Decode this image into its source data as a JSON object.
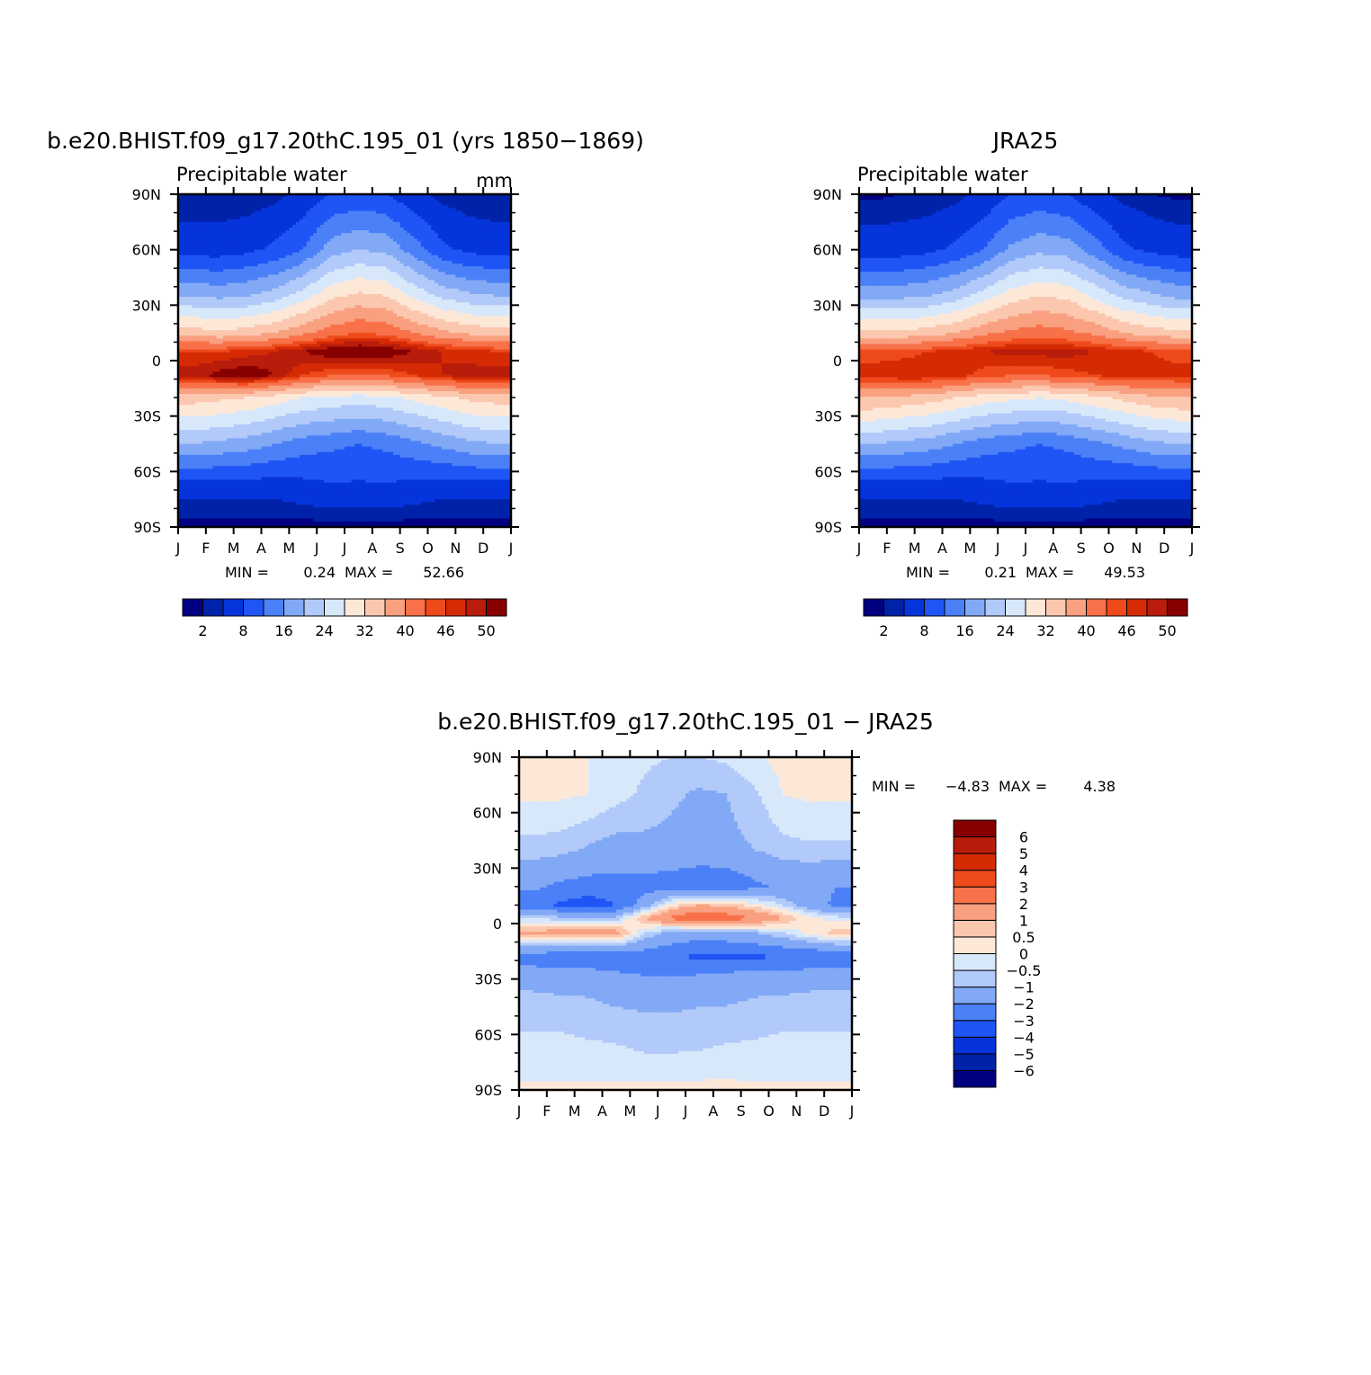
{
  "chart_data": [
    {
      "type": "heatmap",
      "title": "b.e20.BHIST.f09_g17.20thC.195_01 (yrs 1850-1869)",
      "subtitle_left": "Precipitable water",
      "subtitle_right": "mm",
      "x_ticks": [
        "J",
        "F",
        "M",
        "A",
        "M",
        "J",
        "J",
        "A",
        "S",
        "O",
        "N",
        "D",
        "J"
      ],
      "y_ticks": [
        "90N",
        "60N",
        "30N",
        "0",
        "30S",
        "60S",
        "90S"
      ],
      "ylim": [
        -90,
        90
      ],
      "min_label": "MIN =",
      "min": "0.24",
      "max_label": "MAX =",
      "max": "52.66",
      "field": {
        "lat_nodes": [
          -90,
          -70,
          -45,
          -20,
          -8,
          5,
          15,
          35,
          60,
          90
        ],
        "month_centers": [
          0.5,
          1.5,
          2.5,
          3.5,
          4.5,
          5.5,
          6.5,
          7.5,
          8.5,
          9.5,
          10.5,
          11.5
        ],
        "values": [
          [
            1,
            1,
            1,
            1,
            1,
            1,
            1,
            1,
            1,
            1,
            1,
            1
          ],
          [
            5,
            5,
            5,
            5,
            6,
            7,
            7,
            7,
            6,
            5,
            5,
            5
          ],
          [
            20,
            19,
            18,
            16,
            14,
            13,
            12,
            13,
            15,
            17,
            19,
            20
          ],
          [
            34,
            33,
            32,
            30,
            28,
            27,
            26,
            27,
            29,
            31,
            33,
            34
          ],
          [
            49,
            51,
            52,
            50,
            46,
            44,
            43,
            44,
            46,
            48,
            49,
            49
          ],
          [
            46,
            46,
            47,
            48,
            50,
            52,
            53,
            52,
            50,
            48,
            47,
            46
          ],
          [
            34,
            33,
            34,
            36,
            39,
            42,
            44,
            43,
            40,
            37,
            35,
            34
          ],
          [
            20,
            19,
            20,
            22,
            26,
            31,
            33,
            32,
            27,
            23,
            21,
            20
          ],
          [
            6,
            6,
            7,
            9,
            12,
            18,
            20,
            19,
            14,
            9,
            7,
            6
          ],
          [
            2,
            2,
            2,
            3,
            5,
            8,
            9,
            8,
            5,
            3,
            2,
            2
          ]
        ]
      },
      "colorbar": {
        "levels": [
          2,
          4,
          8,
          12,
          16,
          20,
          24,
          28,
          32,
          36,
          40,
          44,
          46,
          48,
          50
        ],
        "labels": [
          "2",
          "8",
          "16",
          "24",
          "32",
          "40",
          "46",
          "50"
        ],
        "colors": [
          "#000080",
          "#0022a8",
          "#0534db",
          "#1f55f5",
          "#4b80f7",
          "#82a9f6",
          "#b2caf9",
          "#d8e8fb",
          "#fde8d8",
          "#fcc7af",
          "#f9a080",
          "#f87148",
          "#ee4a1b",
          "#d52b05",
          "#b81c0a",
          "#870000"
        ]
      }
    },
    {
      "type": "heatmap",
      "title": "JRA25",
      "subtitle_left": "Precipitable water",
      "x_ticks": [
        "J",
        "F",
        "M",
        "A",
        "M",
        "J",
        "J",
        "A",
        "S",
        "O",
        "N",
        "D",
        "J"
      ],
      "y_ticks": [
        "90N",
        "60N",
        "30N",
        "0",
        "30S",
        "60S",
        "90S"
      ],
      "ylim": [
        -90,
        90
      ],
      "min_label": "MIN =",
      "min": "0.21",
      "max_label": "MAX =",
      "max": "49.53",
      "field": {
        "lat_nodes": [
          -90,
          -70,
          -45,
          -20,
          -8,
          5,
          15,
          35,
          60,
          90
        ],
        "month_centers": [
          0.5,
          1.5,
          2.5,
          3.5,
          4.5,
          5.5,
          6.5,
          7.5,
          8.5,
          9.5,
          10.5,
          11.5
        ],
        "values": [
          [
            1,
            1,
            1,
            1,
            1,
            1,
            1,
            1,
            1,
            1,
            1,
            1
          ],
          [
            5,
            5,
            5,
            5,
            6,
            7,
            7,
            7,
            6,
            5,
            5,
            5
          ],
          [
            20,
            19,
            18,
            16,
            14,
            13,
            12,
            13,
            15,
            17,
            19,
            20
          ],
          [
            36,
            35,
            34,
            32,
            30,
            29,
            28,
            29,
            31,
            33,
            35,
            36
          ],
          [
            47,
            48,
            48,
            47,
            45,
            44,
            44,
            45,
            46,
            47,
            47,
            47
          ],
          [
            45,
            45,
            46,
            47,
            48,
            49,
            49,
            49,
            48,
            47,
            46,
            45
          ],
          [
            33,
            33,
            34,
            36,
            39,
            41,
            42,
            41,
            39,
            36,
            34,
            33
          ],
          [
            19,
            19,
            20,
            22,
            26,
            30,
            32,
            31,
            27,
            23,
            21,
            19
          ],
          [
            6,
            6,
            7,
            9,
            12,
            17,
            19,
            18,
            14,
            9,
            7,
            6
          ],
          [
            1.5,
            2,
            2,
            3,
            5,
            8,
            9,
            8,
            5,
            3,
            2,
            1.5
          ]
        ]
      },
      "colorbar": {
        "levels": [
          2,
          4,
          8,
          12,
          16,
          20,
          24,
          28,
          32,
          36,
          40,
          44,
          46,
          48,
          50
        ],
        "labels": [
          "2",
          "8",
          "16",
          "24",
          "32",
          "40",
          "46",
          "50"
        ],
        "colors": [
          "#000080",
          "#0022a8",
          "#0534db",
          "#1f55f5",
          "#4b80f7",
          "#82a9f6",
          "#b2caf9",
          "#d8e8fb",
          "#fde8d8",
          "#fcc7af",
          "#f9a080",
          "#f87148",
          "#ee4a1b",
          "#d52b05",
          "#b81c0a",
          "#870000"
        ]
      }
    },
    {
      "type": "heatmap",
      "title": "b.e20.BHIST.f09_g17.20thC.195_01 - JRA25",
      "x_ticks": [
        "J",
        "F",
        "M",
        "A",
        "M",
        "J",
        "J",
        "A",
        "S",
        "O",
        "N",
        "D",
        "J"
      ],
      "y_ticks": [
        "90N",
        "60N",
        "30N",
        "0",
        "30S",
        "60S",
        "90S"
      ],
      "ylim": [
        -90,
        90
      ],
      "min_label": "MIN =",
      "min": "-4.83",
      "max_label": "MAX =",
      "max": "4.38",
      "field": {
        "lat_nodes": [
          -90,
          -75,
          -50,
          -30,
          -18,
          -5,
          3,
          10,
          20,
          40,
          70,
          90
        ],
        "month_centers": [
          0.5,
          1.5,
          2.5,
          3.5,
          4.5,
          5.5,
          6.5,
          7.5,
          8.5,
          9.5,
          10.5,
          11.5
        ],
        "values": [
          [
            0.1,
            0.1,
            0.1,
            0.1,
            0.2,
            0.2,
            0.2,
            0.2,
            0.1,
            0.1,
            0.1,
            0.1
          ],
          [
            -0.3,
            -0.3,
            -0.3,
            -0.3,
            -0.4,
            -0.4,
            -0.4,
            -0.3,
            -0.3,
            -0.3,
            -0.3,
            -0.3
          ],
          [
            -0.6,
            -0.6,
            -0.7,
            -0.8,
            -0.9,
            -0.9,
            -0.8,
            -0.8,
            -0.7,
            -0.6,
            -0.6,
            -0.6
          ],
          [
            -1.2,
            -1.3,
            -1.3,
            -1.6,
            -1.9,
            -1.9,
            -1.7,
            -1.5,
            -1.3,
            -1.3,
            -1.2,
            -1.2
          ],
          [
            -2.6,
            -2.8,
            -2.8,
            -2.8,
            -2.6,
            -2.9,
            -3.2,
            -3.2,
            -3.2,
            -3.0,
            -3.0,
            -2.8
          ],
          [
            1.2,
            1.4,
            1.5,
            1.4,
            -0.5,
            -1.2,
            -1.5,
            -1.3,
            -1.0,
            -0.5,
            0.2,
            0.8
          ],
          [
            -0.5,
            -0.8,
            -1.0,
            -0.8,
            1.0,
            2.2,
            3.0,
            2.6,
            2.0,
            1.0,
            0.2,
            -0.3
          ],
          [
            -2.6,
            -3.2,
            -3.6,
            -3.0,
            -1.5,
            0.3,
            1.0,
            0.8,
            0.2,
            -0.5,
            -1.6,
            -2.2
          ],
          [
            -1.8,
            -2.2,
            -2.4,
            -2.4,
            -2.4,
            -2.6,
            -3.0,
            -2.8,
            -2.2,
            -1.8,
            -1.8,
            -2.0
          ],
          [
            -0.7,
            -0.8,
            -1.1,
            -1.3,
            -1.2,
            -1.2,
            -1.2,
            -1.2,
            -1.0,
            -0.7,
            -0.6,
            -0.6
          ],
          [
            0.1,
            0.1,
            0.0,
            -0.3,
            -0.6,
            -0.9,
            -1.1,
            -1.0,
            -0.6,
            0.0,
            0.1,
            0.1
          ],
          [
            0.2,
            0.1,
            0.0,
            -0.2,
            -0.4,
            -0.5,
            -0.5,
            -0.4,
            -0.1,
            0.2,
            0.2,
            0.2
          ]
        ]
      },
      "colorbar": {
        "levels": [
          -6,
          -5,
          -4,
          -3,
          -2,
          -1,
          -0.5,
          0,
          0.5,
          1,
          2,
          3,
          4,
          5,
          6
        ],
        "labels": [
          "-6",
          "-5",
          "-4",
          "-3",
          "-2",
          "-1",
          "-0.5",
          "0",
          "0.5",
          "1",
          "2",
          "3",
          "4",
          "5",
          "6"
        ],
        "colors": [
          "#000080",
          "#0022a8",
          "#0534db",
          "#1f55f5",
          "#4b80f7",
          "#82a9f6",
          "#b2caf9",
          "#d8e8fb",
          "#fde8d8",
          "#fcc7af",
          "#f9a080",
          "#f87148",
          "#ee4a1b",
          "#d52b05",
          "#b81c0a",
          "#870000"
        ]
      }
    }
  ]
}
